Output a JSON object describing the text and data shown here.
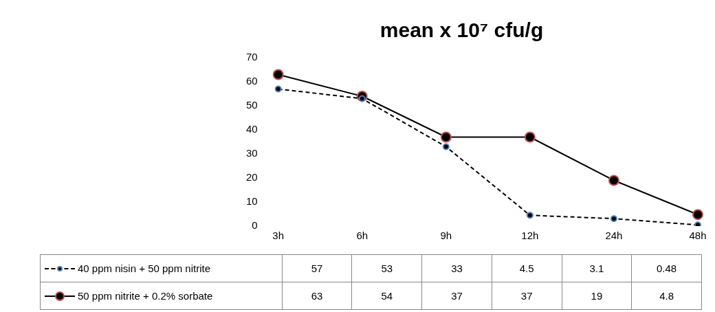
{
  "chart_data": {
    "type": "line",
    "title": "mean x 10⁷ cfu/g",
    "categories": [
      "3h",
      "6h",
      "9h",
      "12h",
      "24h",
      "48h"
    ],
    "series": [
      {
        "name": "40 ppm nisin + 50 ppm nitrite",
        "color": "#000000",
        "line_style": "dashed",
        "values": [
          57,
          53,
          33,
          4.5,
          3.1,
          0.48
        ]
      },
      {
        "name": "50 ppm nitrite + 0.2% sorbate",
        "color": "#000000",
        "line_style": "solid",
        "values": [
          63,
          54,
          37,
          37,
          19,
          4.8
        ]
      }
    ],
    "ylim": [
      0,
      70
    ],
    "yticks": [
      0,
      10,
      20,
      30,
      40,
      50,
      60,
      70
    ],
    "grid": false,
    "marker": "circle",
    "data_labels": true,
    "legend": "bottom left"
  }
}
